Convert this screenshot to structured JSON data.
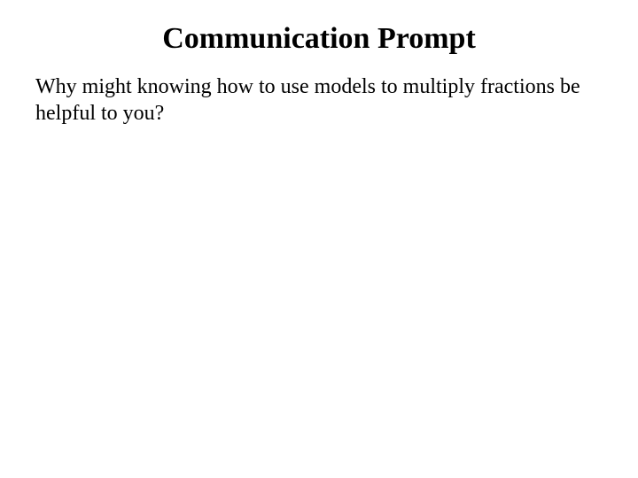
{
  "document": {
    "title": "Communication Prompt",
    "body": "Why might knowing how to use models to multiply fractions be helpful to you?",
    "background_color": "#ffffff",
    "text_color": "#000000",
    "font_family": "Times New Roman",
    "title_fontsize": 34,
    "body_fontsize": 24,
    "title_fontweight": "bold",
    "body_fontweight": "normal"
  }
}
